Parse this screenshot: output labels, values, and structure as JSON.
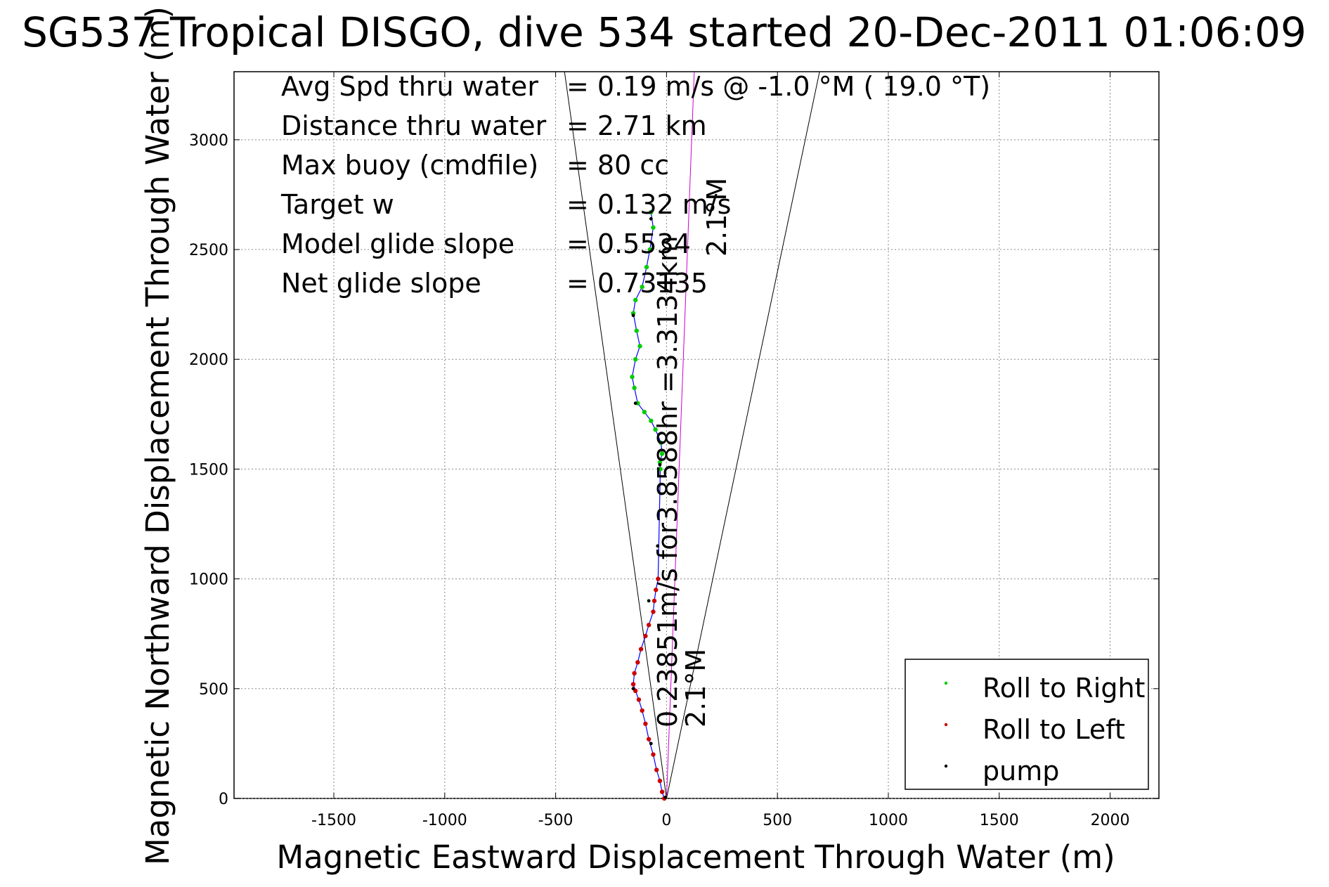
{
  "chart_data": {
    "type": "scatter",
    "title": "SG537 Tropical DISGO, dive 534 started 20-Dec-2011 01:06:09",
    "xlabel": "Magnetic Eastward Displacement Through Water (m)",
    "ylabel": "Magnetic Northward Displacement Through Water (m)",
    "xlim": [
      -1950,
      2220
    ],
    "ylim": [
      0,
      3310
    ],
    "xticks": [
      -1500,
      -1000,
      -500,
      0,
      500,
      1000,
      1500,
      2000
    ],
    "yticks": [
      0,
      500,
      1000,
      1500,
      2000,
      2500,
      3000
    ],
    "grid": true,
    "legend_position": "bottom-right",
    "annotations": [
      {
        "label": "Avg Spd thru water",
        "value": "=  0.19 m/s @  -1.0 °M ( 19.0 °T)"
      },
      {
        "label": "Distance thru water",
        "value": "=  2.71 km"
      },
      {
        "label": "Max buoy (cmdfile)",
        "value": "= 80 cc"
      },
      {
        "label": "Target w",
        "value": "= 0.132 m/s"
      },
      {
        "label": "Model glide slope",
        "value": "= 0.5534"
      },
      {
        "label": "Net glide slope",
        "value": "= 0.73135"
      }
    ],
    "course_label": "0.23851m/s for3.8588hr =3.3134km",
    "heading_label_bottom": "2.1°M",
    "heading_label_top": "2.1°M",
    "guide_lines": [
      {
        "from": [
          0,
          0
        ],
        "to": [
          -460,
          3310
        ]
      },
      {
        "from": [
          0,
          0
        ],
        "to": [
          690,
          3310
        ]
      },
      {
        "from": [
          0,
          0
        ],
        "to": [
          125,
          3310
        ]
      }
    ],
    "series": [
      {
        "name": "Roll to Right",
        "color": "#00cc00",
        "x": [
          -70,
          -60,
          -75,
          -90,
          -110,
          -140,
          -150,
          -135,
          -120,
          -140,
          -155,
          -145,
          -130,
          -100,
          -70,
          -50,
          -25,
          -20,
          -30,
          -28
        ],
        "y": [
          2670,
          2600,
          2500,
          2420,
          2330,
          2270,
          2210,
          2130,
          2060,
          2000,
          1920,
          1870,
          1800,
          1760,
          1720,
          1680,
          1620,
          1570,
          1530,
          1500
        ]
      },
      {
        "name": "Roll to Left",
        "color": "#cc0000",
        "x": [
          -10,
          -20,
          -30,
          -45,
          -60,
          -80,
          -95,
          -110,
          -125,
          -140,
          -150,
          -145,
          -130,
          -115,
          -95,
          -80,
          -60,
          -55,
          -48,
          -38
        ],
        "y": [
          0,
          30,
          80,
          130,
          200,
          270,
          340,
          400,
          450,
          490,
          520,
          570,
          620,
          680,
          740,
          790,
          850,
          900,
          950,
          1000
        ]
      },
      {
        "name": "pump",
        "color": "#000000",
        "x": [
          -5,
          -70,
          -150,
          -80,
          -40,
          -30,
          -140,
          -150,
          -70
        ],
        "y": [
          5,
          250,
          500,
          900,
          1150,
          1520,
          1800,
          2200,
          2640
        ]
      }
    ]
  }
}
